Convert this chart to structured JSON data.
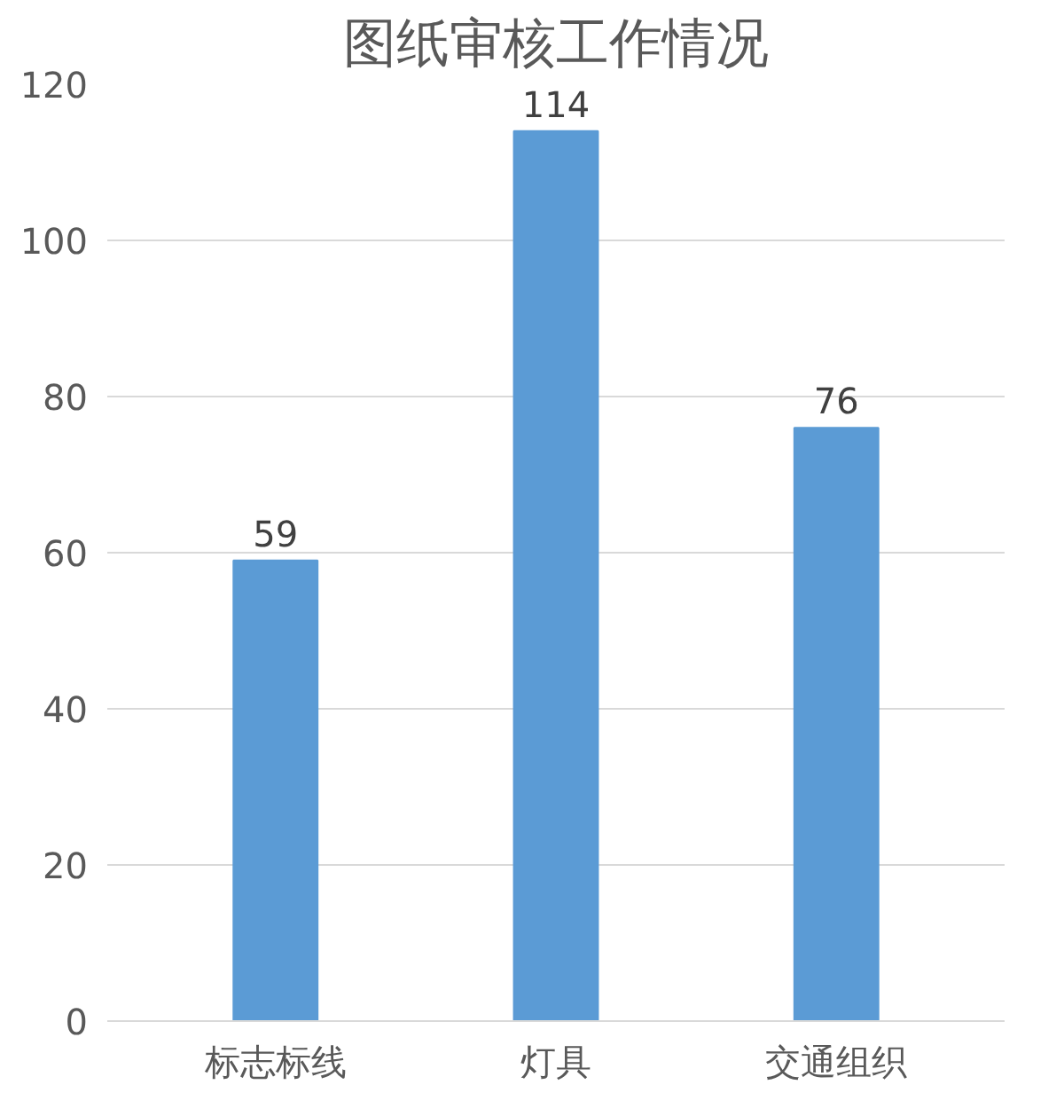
{
  "chart_data": {
    "type": "bar",
    "title": "图纸审核工作情况",
    "categories": [
      "标志标线",
      "灯具",
      "交通组织"
    ],
    "values": [
      59,
      114,
      76
    ],
    "color": "#5b9bd5",
    "ylim": [
      0,
      120
    ],
    "yticks": [
      0,
      20,
      40,
      60,
      80,
      100,
      120
    ],
    "grid": "y",
    "data_labels": true
  }
}
